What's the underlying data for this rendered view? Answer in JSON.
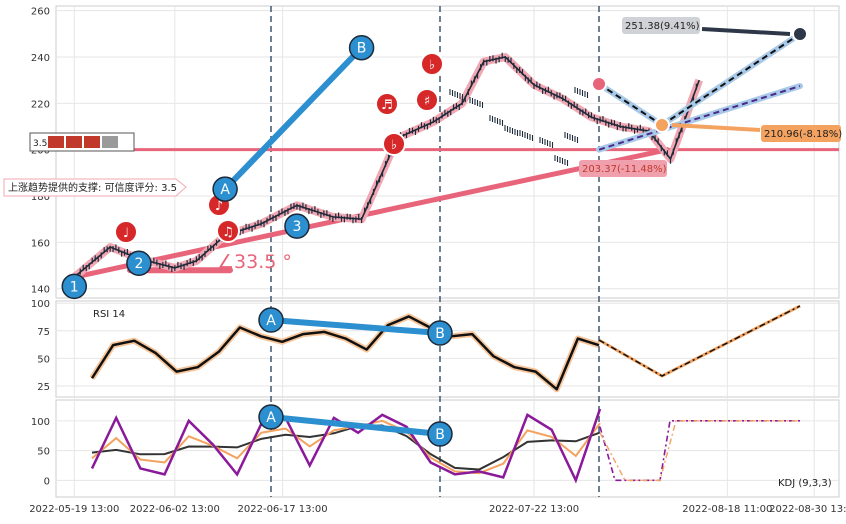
{
  "chart_data": [
    {
      "type": "line",
      "panel": "price",
      "yticks": [
        140,
        160,
        180,
        200,
        220,
        240,
        260
      ],
      "ylim": [
        136,
        262
      ],
      "x": [
        "2022-05-19 13:00",
        "2022-05-24 13:00",
        "2022-05-28 13:00",
        "2022-06-02 13:00",
        "2022-06-05 13:00",
        "2022-06-09 13:00",
        "2022-06-14 13:00",
        "2022-06-19 13:00",
        "2022-06-24 13:00",
        "2022-06-28 13:00",
        "2022-07-03 13:00",
        "2022-07-08 13:00",
        "2022-07-12 13:00",
        "2022-07-15 13:00",
        "2022-07-18 13:00",
        "2022-07-22 13:00",
        "2022-07-26 13:00",
        "2022-07-30 13:00",
        "2022-08-03 13:00",
        "2022-08-07 13:00",
        "2022-08-10 13:00",
        "2022-08-14 13:00"
      ],
      "series": [
        {
          "values": [
            145,
            158,
            153,
            149,
            152,
            163,
            168,
            176,
            171,
            170,
            205,
            212,
            220,
            238,
            240,
            228,
            222,
            214,
            210,
            208,
            196,
            230
          ]
        }
      ],
      "waves": [
        {
          "label": "1",
          "x": "2022-05-19 13:00",
          "y": 141
        },
        {
          "label": "2",
          "x": "2022-05-28 13:00",
          "y": 151
        },
        {
          "label": "A",
          "x": "2022-06-09 13:00",
          "y": 183
        },
        {
          "label": "3",
          "x": "2022-06-19 13:00",
          "y": 167
        },
        {
          "label": "B",
          "x": "2022-06-28 13:00",
          "y": 244
        }
      ],
      "support_text": "上涨趋势提供的支撑: 可信度评分: 3.5",
      "resistance_text": "3.5",
      "angle_text": "∠33.5 °",
      "annotations": [
        {
          "text": "251.38(9.41%)",
          "y": 251.38
        },
        {
          "text": "210.96(-8.18%)",
          "y": 210.96
        },
        {
          "text": "203.37(-11.48%)",
          "y": 203.37
        }
      ]
    },
    {
      "type": "line",
      "panel": "rsi",
      "label": "RSI 14",
      "yticks": [
        25,
        50,
        75,
        100
      ],
      "ylim": [
        15,
        102
      ],
      "values": [
        32,
        62,
        66,
        55,
        38,
        42,
        56,
        78,
        70,
        65,
        72,
        74,
        68,
        58,
        80,
        88,
        78,
        70,
        72,
        52,
        42,
        38,
        22,
        68,
        62
      ]
    },
    {
      "type": "line",
      "panel": "kdj",
      "label": "KDJ (9,3,3)",
      "yticks": [
        0,
        50,
        100
      ],
      "ylim": [
        -28,
        135
      ],
      "values": [
        20,
        105,
        20,
        10,
        100,
        60,
        10,
        95,
        105,
        25,
        105,
        80,
        110,
        90,
        30,
        10,
        15,
        5,
        110,
        85,
        0,
        120
      ]
    }
  ],
  "x_tick_labels": [
    "2022-05-19 13:00",
    "2022-06-02 13:00",
    "2022-06-17 13:00",
    "2022-07-22 13:00",
    "2022-08-18 11:00",
    "2022-08-30 13:00"
  ],
  "colors": {
    "pink": "#e8647a",
    "blue": "#2c8fd0",
    "light_blue": "#a9c9e8",
    "navy": "#2d3748",
    "orange": "#f3a25f",
    "purple": "#8b1a9a",
    "grid_bg": "#ffffff"
  }
}
